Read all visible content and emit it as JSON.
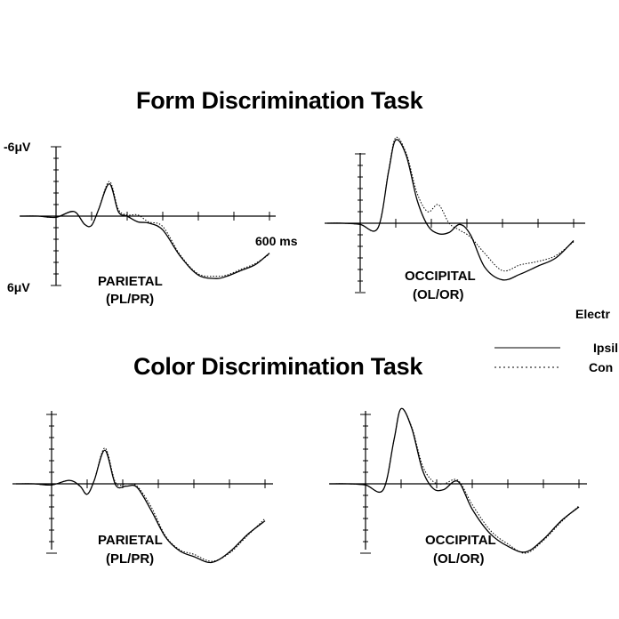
{
  "titles": {
    "form": "Form Discrimination Task",
    "color": "Color Discrimination Task"
  },
  "scale": {
    "neg_label": "-6μV",
    "pos_label": "6μV",
    "time_label": "600 ms"
  },
  "legend": {
    "title": "Electr",
    "ipsi": "Ipsil",
    "contra": "Con"
  },
  "chart_data": [
    {
      "type": "line",
      "title": "Form Discrimination Task",
      "panel": "PARIETAL",
      "panel_sub": "(PL/PR)",
      "x_unit": "ms",
      "y_unit": "μV",
      "xlim": [
        -100,
        600
      ],
      "ylim": [
        6,
        -6
      ],
      "series": [
        {
          "name": "Ipsil",
          "style": "solid",
          "x": [
            -100,
            -50,
            0,
            50,
            80,
            100,
            120,
            150,
            175,
            200,
            230,
            260,
            300,
            350,
            400,
            450,
            480,
            520,
            560,
            600
          ],
          "y": [
            0,
            0,
            0.1,
            -0.4,
            0.7,
            0.8,
            -0.6,
            -2.8,
            -0.4,
            0,
            0.5,
            0.6,
            1.2,
            3.5,
            5.1,
            5.4,
            5.2,
            4.7,
            4.2,
            3.2
          ]
        },
        {
          "name": "Con",
          "style": "dotted",
          "x": [
            -100,
            -50,
            0,
            50,
            80,
            100,
            120,
            150,
            175,
            200,
            230,
            260,
            300,
            350,
            400,
            450,
            480,
            520,
            560,
            600
          ],
          "y": [
            0,
            0,
            0.1,
            -0.4,
            0.7,
            0.8,
            -0.6,
            -3.0,
            -0.6,
            -0.1,
            -0.1,
            0.5,
            0.9,
            3.4,
            5.0,
            5.2,
            5.1,
            4.6,
            4.1,
            3.3
          ]
        }
      ]
    },
    {
      "type": "line",
      "title": "Form Discrimination Task",
      "panel": "OCCIPITAL",
      "panel_sub": "(OL/OR)",
      "x_unit": "ms",
      "y_unit": "μV",
      "xlim": [
        -100,
        600
      ],
      "ylim": [
        6,
        -6
      ],
      "series": [
        {
          "name": "Ipsil",
          "style": "solid",
          "x": [
            -100,
            -50,
            0,
            50,
            80,
            100,
            130,
            160,
            190,
            220,
            250,
            280,
            310,
            350,
            400,
            450,
            500,
            550,
            600
          ],
          "y": [
            0,
            0,
            0.1,
            0.4,
            -4.5,
            -7.2,
            -5.8,
            -2.0,
            0.2,
            0.9,
            0.8,
            0.1,
            1.0,
            3.8,
            4.9,
            4.4,
            3.7,
            3.0,
            1.5
          ]
        },
        {
          "name": "Con",
          "style": "dotted",
          "x": [
            -100,
            -50,
            0,
            50,
            80,
            100,
            130,
            160,
            190,
            220,
            250,
            280,
            310,
            350,
            400,
            450,
            500,
            550,
            600
          ],
          "y": [
            0,
            0,
            0.1,
            0.4,
            -4.6,
            -7.4,
            -6.0,
            -2.6,
            -1.0,
            -1.6,
            0.0,
            0.6,
            1.2,
            2.6,
            4.1,
            3.6,
            3.3,
            2.8,
            1.6
          ]
        }
      ]
    },
    {
      "type": "line",
      "title": "Color Discrimination Task",
      "panel": "PARIETAL",
      "panel_sub": "(PL/PR)",
      "x_unit": "ms",
      "y_unit": "μV",
      "xlim": [
        -100,
        600
      ],
      "ylim": [
        6,
        -6
      ],
      "series": [
        {
          "name": "Ipsil",
          "style": "solid",
          "x": [
            -100,
            -50,
            0,
            50,
            80,
            100,
            120,
            150,
            180,
            210,
            240,
            280,
            320,
            360,
            400,
            450,
            500,
            550,
            600
          ],
          "y": [
            0,
            0,
            0.1,
            -0.3,
            0.2,
            0.9,
            -0.3,
            -2.9,
            0.1,
            0.2,
            0.3,
            2.3,
            4.6,
            5.8,
            6.3,
            6.8,
            5.9,
            4.4,
            3.2
          ]
        },
        {
          "name": "Con",
          "style": "dotted",
          "x": [
            -100,
            -50,
            0,
            50,
            80,
            100,
            120,
            150,
            180,
            210,
            240,
            280,
            320,
            360,
            400,
            450,
            500,
            550,
            600
          ],
          "y": [
            0,
            0,
            0.1,
            -0.3,
            0.2,
            0.9,
            -0.3,
            -3.1,
            -0.1,
            0.0,
            0.2,
            2.0,
            4.5,
            5.7,
            6.1,
            6.7,
            6.0,
            4.5,
            3.0
          ]
        }
      ]
    },
    {
      "type": "line",
      "title": "Color Discrimination Task",
      "panel": "OCCIPITAL",
      "panel_sub": "(OL/OR)",
      "x_unit": "ms",
      "y_unit": "μV",
      "xlim": [
        -100,
        600
      ],
      "ylim": [
        6,
        -6
      ],
      "series": [
        {
          "name": "Ipsil",
          "style": "solid",
          "x": [
            -100,
            -50,
            0,
            50,
            80,
            100,
            130,
            160,
            190,
            220,
            260,
            300,
            350,
            400,
            450,
            500,
            550,
            600
          ],
          "y": [
            0,
            0,
            0.1,
            0.5,
            -3.8,
            -6.5,
            -4.8,
            -1.2,
            0.4,
            0.5,
            -0.2,
            2.2,
            4.3,
            5.4,
            5.9,
            4.8,
            3.2,
            2.0
          ]
        },
        {
          "name": "Con",
          "style": "dotted",
          "x": [
            -100,
            -50,
            0,
            50,
            80,
            100,
            130,
            160,
            190,
            220,
            260,
            300,
            350,
            400,
            450,
            500,
            550,
            600
          ],
          "y": [
            0,
            0,
            0.1,
            0.5,
            -3.8,
            -6.5,
            -4.9,
            -1.6,
            -0.2,
            0.0,
            -0.3,
            1.8,
            4.0,
            5.2,
            6.0,
            4.9,
            3.3,
            1.9
          ]
        }
      ]
    }
  ]
}
